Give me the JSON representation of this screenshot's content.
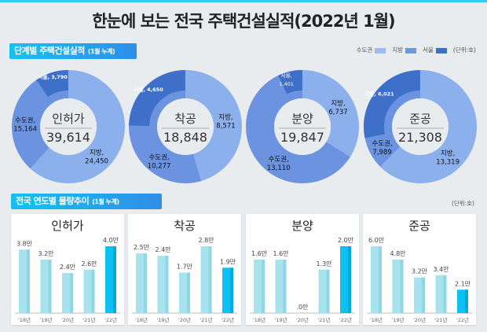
{
  "title": "한눈에 보는 전국 주택건설실적(2022년 1월)",
  "section1": {
    "label": "단계별 주택건설실적",
    "sub": "(1월 누계)"
  },
  "legend": {
    "items": [
      {
        "label": "수도권",
        "color": "#9dbdee"
      },
      {
        "label": "지방",
        "color": "#6f98e2"
      },
      {
        "label": "서울",
        "color": "#3e6fc9"
      }
    ],
    "unit": "(단위:호)"
  },
  "section2": {
    "label": "전국 연도별 물량추이",
    "sub": "(1월 누계)",
    "unit": "(단위:호)"
  },
  "chart_data": [
    {
      "type": "pie",
      "title": "인허가",
      "total": "39,614",
      "slices": [
        {
          "name": "지방",
          "label": "지방,",
          "value": 24450,
          "text": "24,450"
        },
        {
          "name": "수도권",
          "label": "수도권,",
          "value": 15164,
          "text": "15,164"
        },
        {
          "name": "서울",
          "label": "서울,",
          "value": 3790,
          "text": "3,790"
        }
      ]
    },
    {
      "type": "pie",
      "title": "착공",
      "total": "18,848",
      "slices": [
        {
          "name": "지방",
          "label": "지방,",
          "value": 8571,
          "text": "8,571"
        },
        {
          "name": "수도권",
          "label": "수도권,",
          "value": 10277,
          "text": "10,277"
        },
        {
          "name": "서울",
          "label": "서울,",
          "value": 4650,
          "text": "4,650"
        }
      ]
    },
    {
      "type": "pie",
      "title": "분양",
      "total": "19,847",
      "slices": [
        {
          "name": "지방",
          "label": "지방,",
          "value": 6737,
          "text": "6,737"
        },
        {
          "name": "수도권",
          "label": "수도권,",
          "value": 13110,
          "text": "13,110"
        },
        {
          "name": "서울",
          "label": "서울,",
          "value": 1401,
          "text": "1,401"
        }
      ]
    },
    {
      "type": "pie",
      "title": "준공",
      "total": "21,308",
      "slices": [
        {
          "name": "지방",
          "label": "지방,",
          "value": 13319,
          "text": "13,319"
        },
        {
          "name": "수도권",
          "label": "수도권,",
          "value": 7989,
          "text": "7,989"
        },
        {
          "name": "서울",
          "label": "서울,",
          "value": 6021,
          "text": "6,021"
        }
      ]
    },
    {
      "type": "bar",
      "title": "인허가",
      "categories": [
        "'18년",
        "'19년",
        "'20년",
        "'21년",
        "'22년"
      ],
      "values": [
        3.8,
        3.2,
        2.4,
        2.6,
        4.0
      ],
      "labels": [
        "3.8만",
        "3.2만",
        "2.4만",
        "2.6만",
        "4.0만"
      ]
    },
    {
      "type": "bar",
      "title": "착공",
      "categories": [
        "'18년",
        "'19년",
        "'20년",
        "'21년",
        "'22년"
      ],
      "values": [
        2.5,
        2.4,
        1.7,
        2.8,
        1.9
      ],
      "labels": [
        "2.5만",
        "2.4만",
        "1.7만",
        "2.8만",
        "1.9만"
      ]
    },
    {
      "type": "bar",
      "title": "분양",
      "categories": [
        "'18년",
        "'19년",
        "'20년",
        "'21년",
        "'22년"
      ],
      "values": [
        1.6,
        1.6,
        0.0,
        1.3,
        2.0
      ],
      "labels": [
        "1.6만",
        "1.6만",
        ".0만",
        "1.3만",
        "2.0만"
      ]
    },
    {
      "type": "bar",
      "title": "준공",
      "categories": [
        "'18년",
        "'19년",
        "'20년",
        "'21년",
        "'22년"
      ],
      "values": [
        6.0,
        4.8,
        3.2,
        3.4,
        2.1
      ],
      "labels": [
        "6.0만",
        "4.8만",
        "3.2만",
        "3.4만",
        "2.1만"
      ]
    }
  ],
  "colors": {
    "bar": "#a6e3ef",
    "bar_current": "#0cc2f2",
    "donut_inner": "#e9ecef"
  }
}
